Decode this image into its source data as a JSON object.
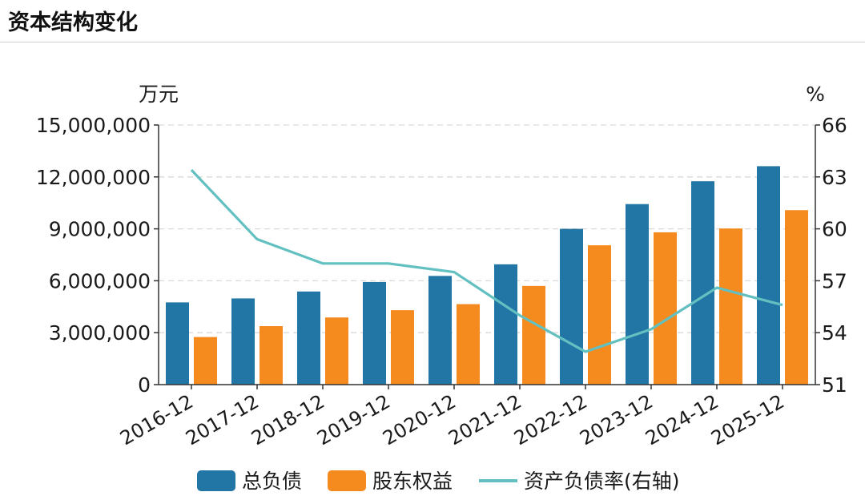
{
  "header": {
    "title": "资本结构变化"
  },
  "chart_data": {
    "type": "bar",
    "categories": [
      "2016-12",
      "2017-12",
      "2018-12",
      "2019-12",
      "2020-12",
      "2021-12",
      "2022-12",
      "2023-12",
      "2024-12",
      "2025-12"
    ],
    "series": [
      {
        "name": "总负债",
        "type": "bar",
        "axis": "left",
        "color": "#2176a6",
        "values": [
          4750000,
          4980000,
          5380000,
          5930000,
          6280000,
          6950000,
          9000000,
          10430000,
          11750000,
          12620000
        ]
      },
      {
        "name": "股东权益",
        "type": "bar",
        "axis": "left",
        "color": "#f58a1f",
        "values": [
          2750000,
          3380000,
          3880000,
          4300000,
          4650000,
          5700000,
          8050000,
          8800000,
          9020000,
          10080000
        ]
      },
      {
        "name": "资产负债率(右轴)",
        "type": "line",
        "axis": "right",
        "color": "#62c0c0",
        "values": [
          63.4,
          59.4,
          58.0,
          58.0,
          57.5,
          55.0,
          52.9,
          54.2,
          56.6,
          55.6
        ]
      }
    ],
    "y_left": {
      "unit": "万元",
      "min": 0,
      "max": 15000000,
      "ticks": [
        0,
        3000000,
        6000000,
        9000000,
        12000000,
        15000000
      ],
      "tick_labels": [
        "0",
        "3,000,000",
        "6,000,000",
        "9,000,000",
        "12,000,000",
        "15,000,000"
      ]
    },
    "y_right": {
      "unit": "%",
      "min": 51,
      "max": 66,
      "ticks": [
        51,
        54,
        57,
        60,
        63,
        66
      ],
      "tick_labels": [
        "51",
        "54",
        "57",
        "60",
        "63",
        "66"
      ]
    },
    "grid": true,
    "legend_position": "bottom"
  }
}
